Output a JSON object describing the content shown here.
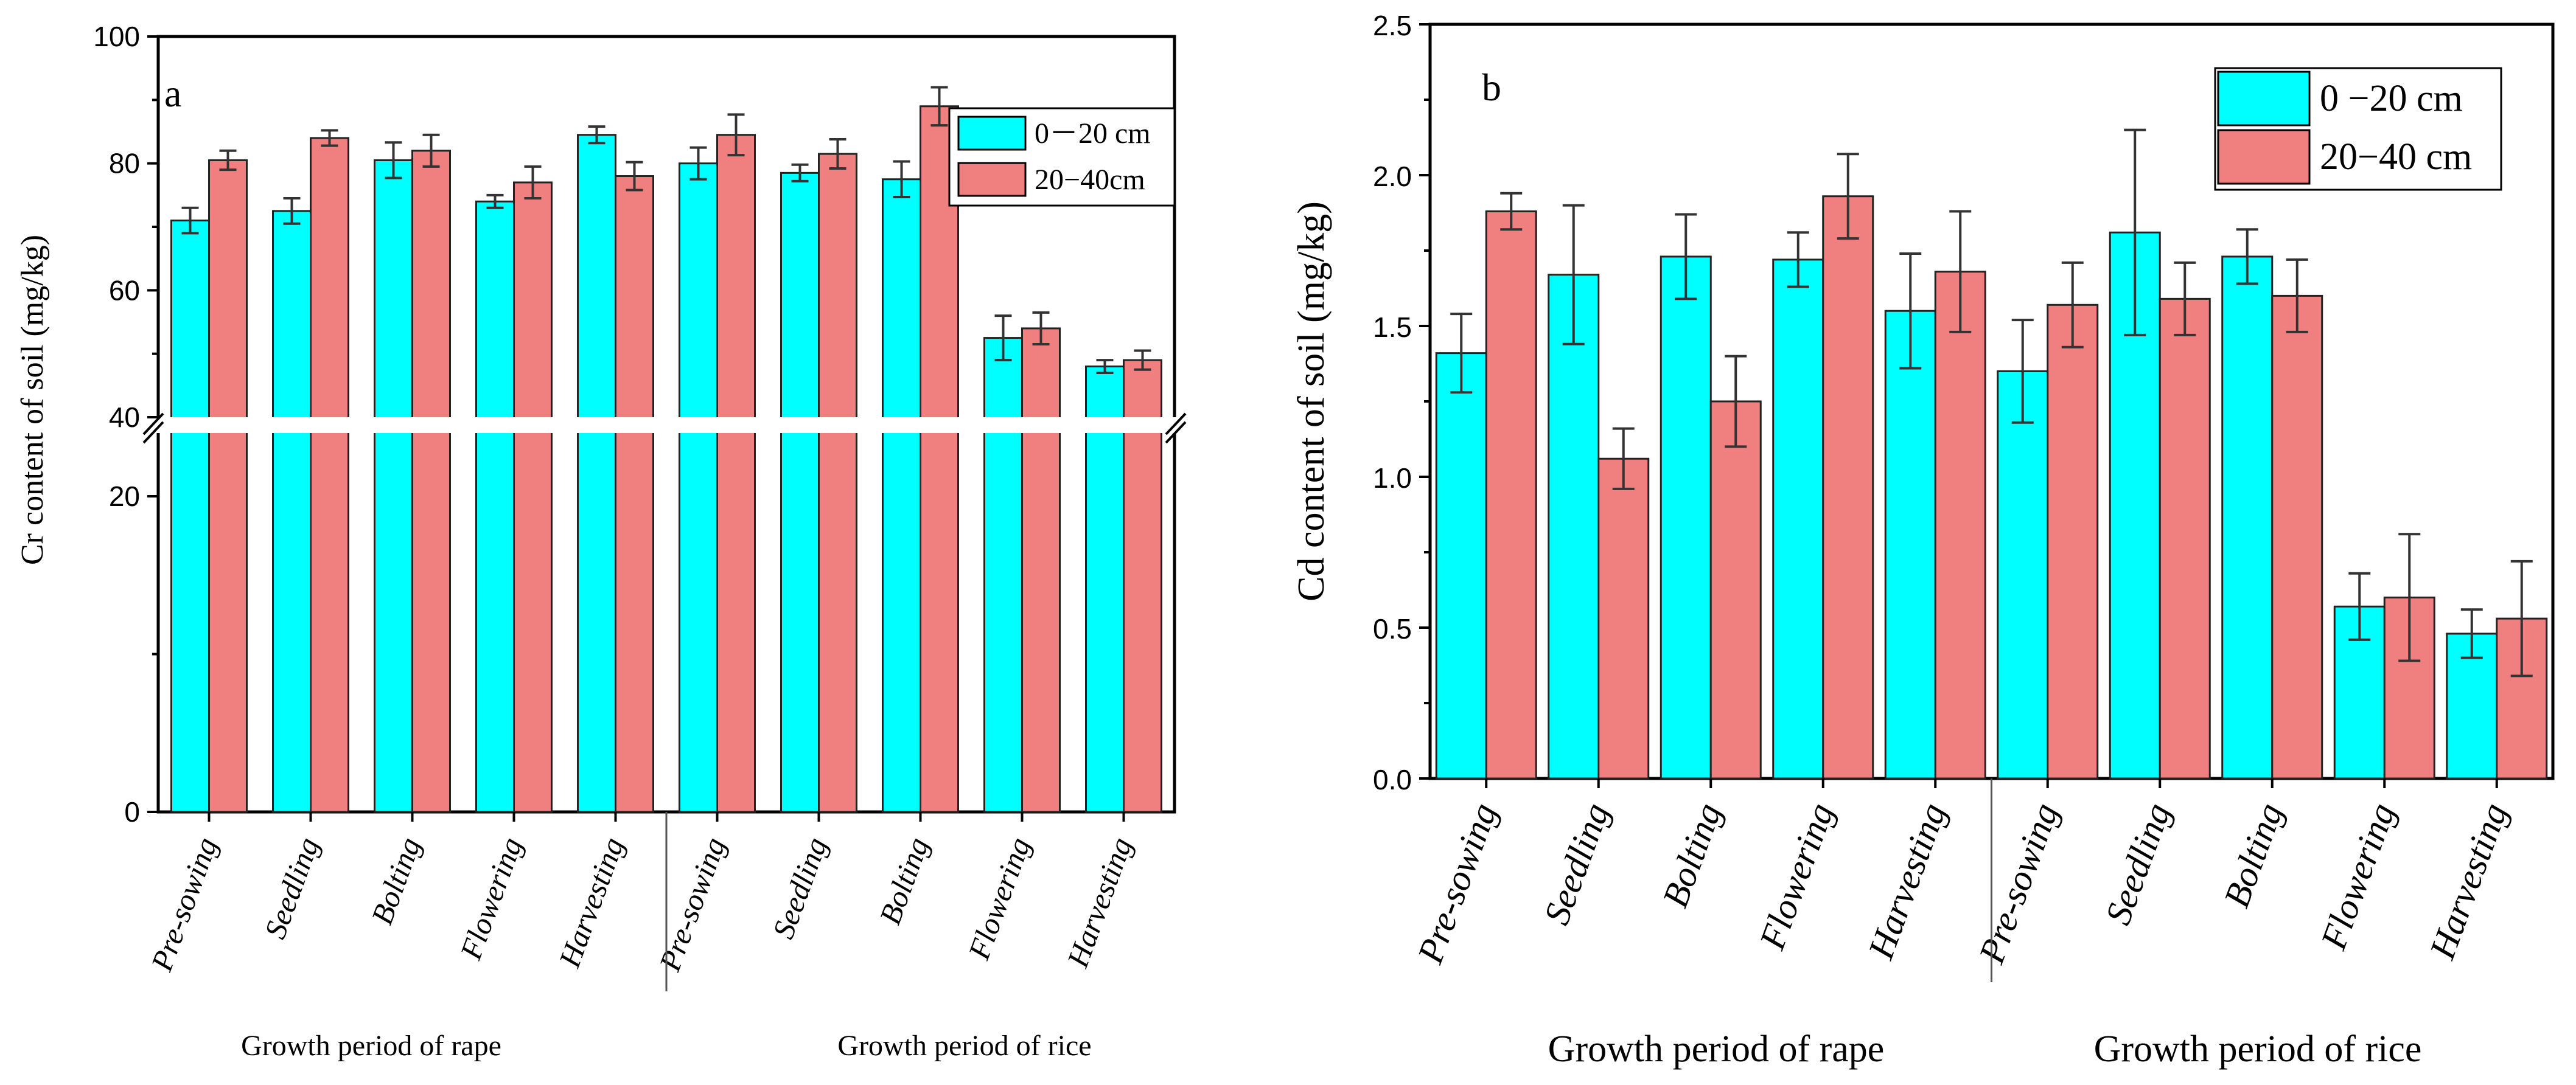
{
  "chart_data": [
    {
      "type": "bar",
      "panel": "a",
      "ylabel": "Cr  content of soil (mg/kg)",
      "ylim_lower": [
        0,
        20
      ],
      "ylim_upper": [
        40,
        100
      ],
      "broken_axis": true,
      "yticks": [
        "0",
        "20",
        "40",
        "60",
        "80",
        "100"
      ],
      "categories": [
        "Pre-sowing",
        "Seedling",
        "Bolting",
        "Flowering",
        "Harvesting",
        "Pre-sowing",
        "Seedling",
        "Bolting",
        "Flowering",
        "Harvesting"
      ],
      "groups": [
        {
          "label": "Growth period of rape"
        },
        {
          "label": "Growth period of rice"
        }
      ],
      "series": [
        {
          "name": "0－20 cm",
          "color": "#00FFFF",
          "values": [
            71,
            72.5,
            80.5,
            74,
            84.5,
            80,
            78.5,
            77.5,
            52.5,
            48
          ],
          "errors": [
            2,
            2,
            2.8,
            1,
            1.3,
            2.5,
            1.3,
            2.8,
            3.5,
            1
          ]
        },
        {
          "name": "20−40cm",
          "color": "#F08080",
          "values": [
            80.5,
            84,
            82,
            77,
            78,
            84.5,
            81.5,
            89,
            54,
            49
          ],
          "errors": [
            1.5,
            1.2,
            2.5,
            2.5,
            2.2,
            3.2,
            2.3,
            3,
            2.5,
            1.5
          ]
        }
      ]
    },
    {
      "type": "bar",
      "panel": "b",
      "ylabel": "Cd  content of soil (mg/kg)",
      "ylim": [
        0,
        2.5
      ],
      "yticks": [
        "0.0",
        "0.5",
        "1.0",
        "1.5",
        "2.0",
        "2.5"
      ],
      "categories": [
        "Pre-sowing",
        "Seedling",
        "Bolting",
        "Flowering",
        "Harvesting",
        "Pre-sowing",
        "Seedling",
        "Bolting",
        "Flowering",
        "Harvesting"
      ],
      "groups": [
        {
          "label": "Growth period of rape"
        },
        {
          "label": "Growth period of rice"
        }
      ],
      "series": [
        {
          "name": "0 −20 cm",
          "color": "#00FFFF",
          "values": [
            1.41,
            1.67,
            1.73,
            1.72,
            1.55,
            1.35,
            1.81,
            1.73,
            0.57,
            0.48
          ],
          "errors": [
            0.13,
            0.23,
            0.14,
            0.09,
            0.19,
            0.17,
            0.34,
            0.09,
            0.11,
            0.08
          ]
        },
        {
          "name": "20−40 cm",
          "color": "#F08080",
          "values": [
            1.88,
            1.06,
            1.25,
            1.93,
            1.68,
            1.57,
            1.59,
            1.6,
            0.6,
            0.53
          ],
          "errors": [
            0.06,
            0.1,
            0.15,
            0.14,
            0.2,
            0.14,
            0.12,
            0.12,
            0.21,
            0.19
          ]
        }
      ]
    }
  ]
}
